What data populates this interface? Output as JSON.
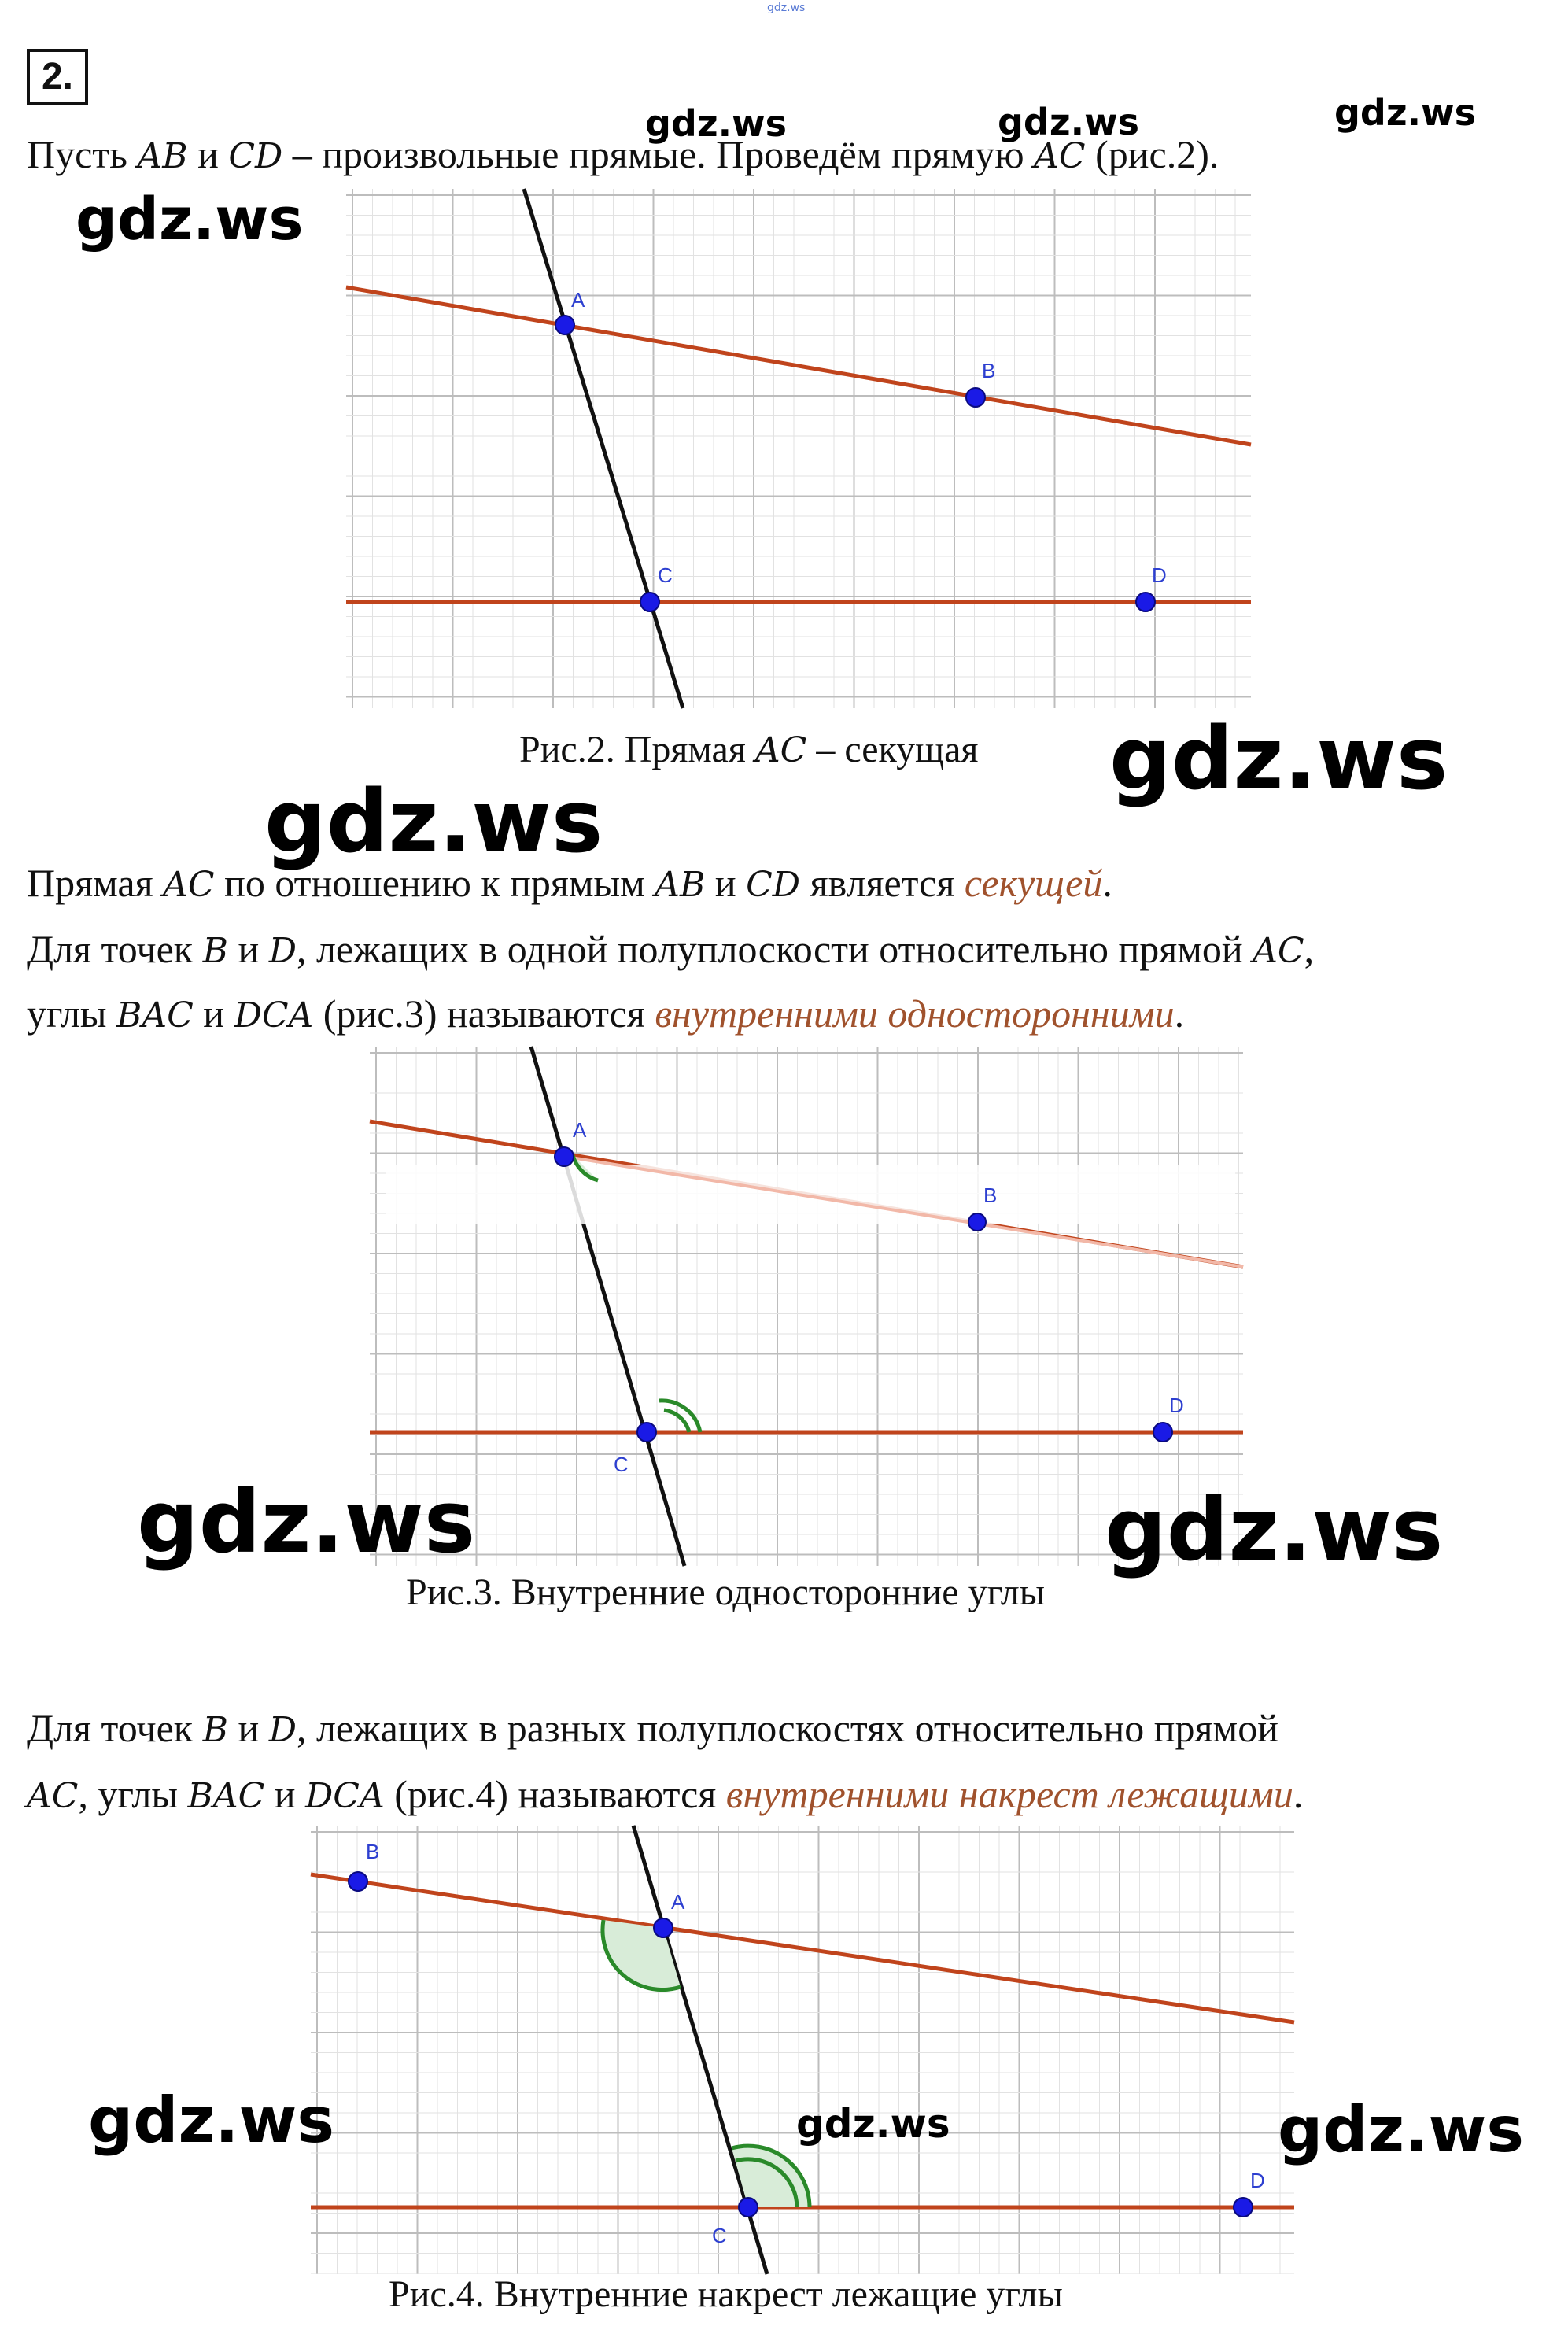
{
  "header_tag": "gdz.ws",
  "problem_number": "2.",
  "para1": {
    "t1": "Пусть ",
    "m1": "AB",
    "t2": " и ",
    "m2": "CD",
    "t3": " – произвольные прямые. Проведём прямую ",
    "m3": "AC",
    "t4": " (рис.2)."
  },
  "fig2": {
    "caption_a": "Рис.2. Прямая ",
    "caption_m": "AC",
    "caption_b": " – секущая",
    "points": {
      "A": "A",
      "B": "B",
      "C": "C",
      "D": "D"
    }
  },
  "para2": {
    "l1_t1": "Прямая ",
    "l1_m1": "AC",
    "l1_t2": " по отношению к прямым ",
    "l1_m2": "AB",
    "l1_t3": " и ",
    "l1_m3": "CD",
    "l1_t4": " является ",
    "l1_term": "секущей",
    "l1_t5": ".",
    "l2_t1": "Для точек ",
    "l2_m1": "B",
    "l2_t2": " и ",
    "l2_m2": "D",
    "l2_t3": ", лежащих в одной полуплоскости относительно прямой ",
    "l2_m3": "AC",
    "l2_t4": ",",
    "l3_t1": "углы ",
    "l3_m1": "BAC",
    "l3_t2": " и ",
    "l3_m2": "DCA",
    "l3_t3": " (рис.3) называются ",
    "l3_term": "внутренними односторонними",
    "l3_t4": "."
  },
  "fig3": {
    "caption": "Рис.3. Внутренние односторонние углы",
    "points": {
      "A": "A",
      "B": "B",
      "C": "C",
      "D": "D"
    }
  },
  "para3": {
    "l1_t1": "Для точек ",
    "l1_m1": "B",
    "l1_t2": " и ",
    "l1_m2": "D",
    "l1_t3": ", лежащих в разных полуплоскостях относительно прямой",
    "l2_m1": "AC",
    "l2_t1": ", углы ",
    "l2_m2": "BAC",
    "l2_t2": " и ",
    "l2_m3": "DCA",
    "l2_t3": " (рис.4) называются ",
    "l2_term": "внутренними накрест лежащими",
    "l2_t4": "."
  },
  "fig4": {
    "caption": "Рис.4. Внутренние накрест лежащие углы",
    "points": {
      "A": "A",
      "B": "B",
      "C": "C",
      "D": "D"
    }
  },
  "watermarks": [
    "gdz.ws",
    "gdz.ws",
    "gdz.ws",
    "gdz.ws",
    "gdz.ws",
    "gdz.ws",
    "gdz.ws",
    "gdz.ws",
    "gdz.ws",
    "gdz.ws",
    "gdz.ws"
  ],
  "colors": {
    "line_red": "#c0441c",
    "line_black": "#111111",
    "point_blue": "#1a1ae6",
    "angle_green": "#2a8a2a",
    "grid": "#d8d8d8",
    "term": "#a0522d"
  }
}
